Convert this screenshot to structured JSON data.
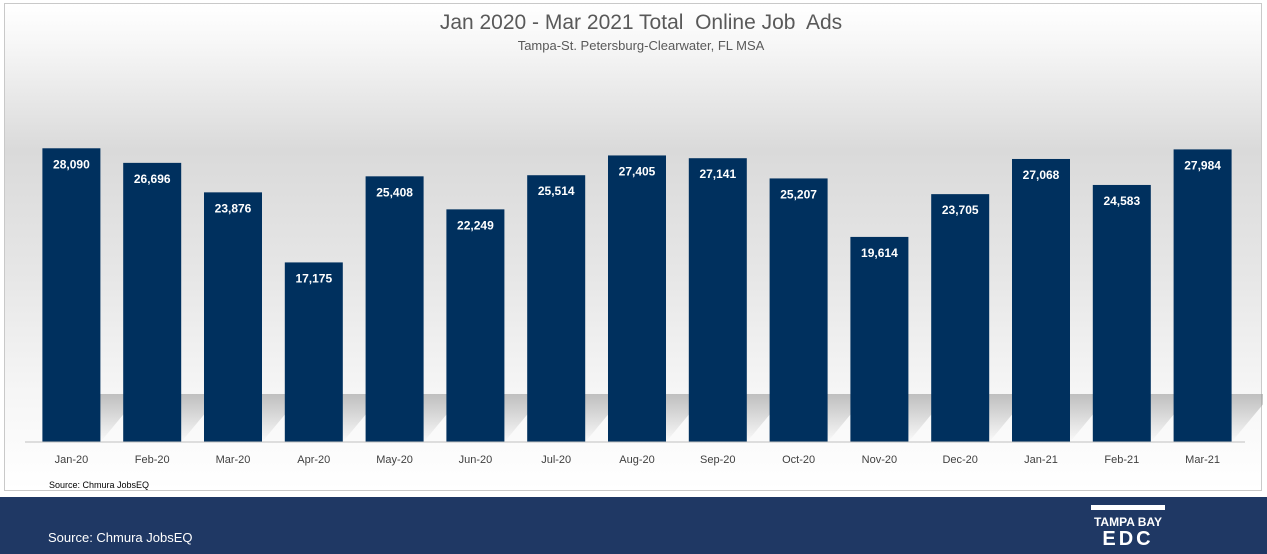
{
  "chart_data": {
    "type": "bar",
    "title": "Jan 2020 - Mar 2021 Total  Online Job  Ads",
    "subtitle": "Tampa-St. Petersburg-Clearwater, FL MSA",
    "categories": [
      "Jan-20",
      "Feb-20",
      "Mar-20",
      "Apr-20",
      "May-20",
      "Jun-20",
      "Jul-20",
      "Aug-20",
      "Sep-20",
      "Oct-20",
      "Nov-20",
      "Dec-20",
      "Jan-21",
      "Feb-21",
      "Mar-21"
    ],
    "values": [
      28090,
      26696,
      23876,
      17175,
      25408,
      22249,
      25514,
      27405,
      27141,
      25207,
      19614,
      23705,
      27068,
      24583,
      27984
    ],
    "data_labels": [
      "28,090",
      "26,696",
      "23,876",
      "17,175",
      "25,408",
      "22,249",
      "25,514",
      "27,405",
      "27,141",
      "25,207",
      "19,614",
      "23,705",
      "27,068",
      "24,583",
      "27,984"
    ],
    "ylim": [
      0,
      28500
    ],
    "grid": false,
    "legend": "none",
    "bar_color": "#00305e",
    "source_note": "Source: Chmura JobsEQ"
  },
  "footer": {
    "source": "Source: Chmura JobsEQ",
    "background": "#1f3864",
    "logo_text": "TAMPA BAY",
    "logo_letters": "EDC"
  }
}
